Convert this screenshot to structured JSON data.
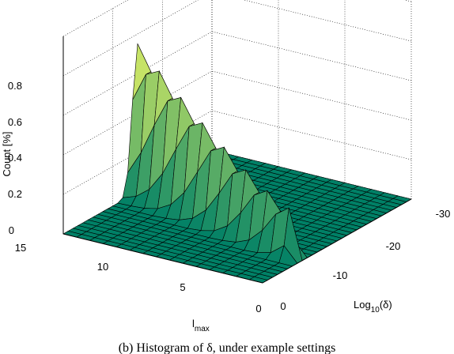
{
  "chart_data": {
    "type": "surface",
    "title": "",
    "zlabel": "Count [%]",
    "xlabel_main": "Log",
    "xlabel_sub": "10",
    "xlabel_tail": "(δ)",
    "ylabel_main": "l",
    "ylabel_sub": "max",
    "x_ticks": [
      "0",
      "-10",
      "-20",
      "-30"
    ],
    "y_ticks": [
      "0",
      "5",
      "10",
      "15"
    ],
    "z_ticks": [
      "0",
      "0.2",
      "0.4",
      "0.6",
      "0.8"
    ],
    "x_range": [
      0,
      -30
    ],
    "y_range": [
      0,
      15
    ],
    "z_range": [
      0,
      0.8
    ],
    "grid": true,
    "colormap": "summer",
    "peaks": [
      {
        "x": -15,
        "y": 15,
        "z": 0.75
      },
      {
        "x": -9,
        "y": 3,
        "z": 0.25
      }
    ],
    "caption": "(b) Histogram of δ, under example settings"
  },
  "colors": {
    "floor": "#1f8f6e",
    "peak": "#ffff66",
    "edge": "#000000",
    "grid": "#000000"
  }
}
